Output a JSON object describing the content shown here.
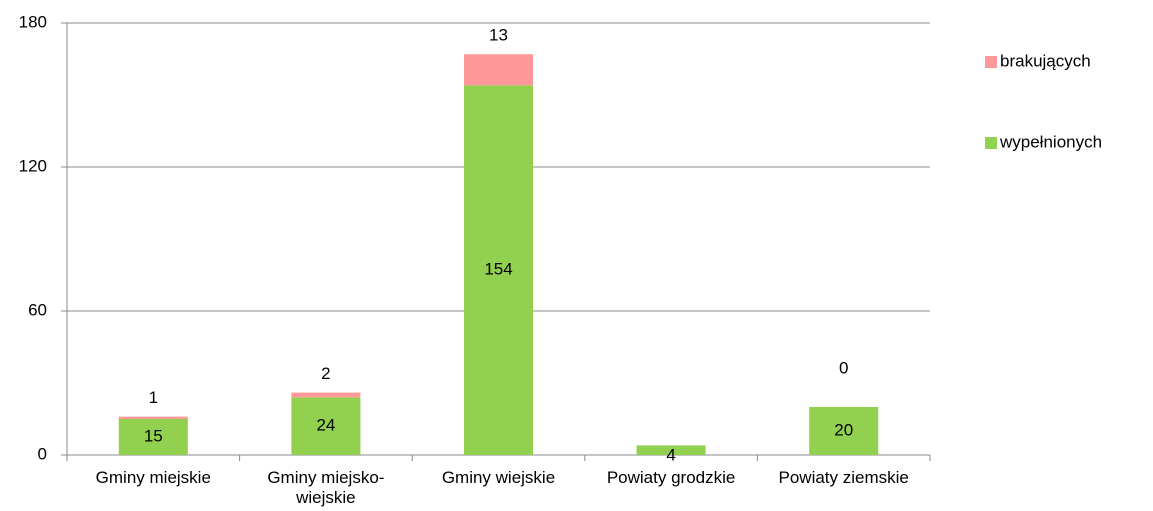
{
  "chart_data": {
    "type": "stacked_bar",
    "categories": [
      "Gminy miejskie",
      "Gminy miejsko-wiejskie",
      "Gminy wiejskie",
      "Powiaty grodzkie",
      "Powiaty ziemskie"
    ],
    "series": [
      {
        "name": "wypełnionych",
        "color": "#92d050",
        "values": [
          15,
          24,
          154,
          4,
          20
        ]
      },
      {
        "name": "brakujących",
        "color": "#ff9999",
        "values": [
          1,
          2,
          13,
          null,
          0
        ]
      }
    ],
    "ylim": [
      0,
      180
    ],
    "yticks": [
      0,
      60,
      120,
      180
    ],
    "grid": true,
    "legend": "right"
  }
}
